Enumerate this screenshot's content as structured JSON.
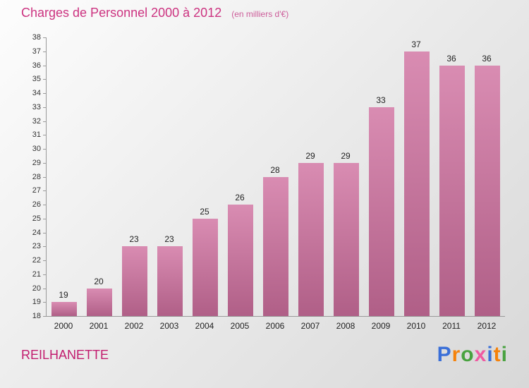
{
  "header": {
    "title": "Charges de Personnel 2000 à 2012",
    "subtitle": "(en milliers d'€)"
  },
  "footer": {
    "place": "REILHANETTE",
    "brand_letters": [
      {
        "ch": "P",
        "color": "#3a6fd8"
      },
      {
        "ch": "r",
        "color": "#f5820b"
      },
      {
        "ch": "o",
        "color": "#48a23f"
      },
      {
        "ch": "x",
        "color": "#ef5ba1"
      },
      {
        "ch": "i",
        "color": "#3a6fd8"
      },
      {
        "ch": "t",
        "color": "#f5820b"
      },
      {
        "ch": "i",
        "color": "#48a23f"
      }
    ]
  },
  "colors": {
    "title": "#cc3380",
    "subtitle": "#cc5c99",
    "place": "#c21c6e",
    "bar_top": "#d98cb2",
    "bar_bottom": "#b05f87",
    "axis": "#9a9a9a",
    "label": "#222222"
  },
  "chart_data": {
    "type": "bar",
    "title": "Charges de Personnel 2000 à 2012",
    "subtitle": "(en milliers d'€)",
    "categories": [
      "2000",
      "2001",
      "2002",
      "2003",
      "2004",
      "2005",
      "2006",
      "2007",
      "2008",
      "2009",
      "2010",
      "2011",
      "2012"
    ],
    "values": [
      19,
      20,
      23,
      23,
      25,
      26,
      28,
      29,
      29,
      33,
      37,
      36,
      36
    ],
    "xlabel": "",
    "ylabel": "",
    "ylim": [
      18,
      38
    ],
    "ytick_step": 1,
    "grid": false,
    "legend": false,
    "value_labels": true
  }
}
